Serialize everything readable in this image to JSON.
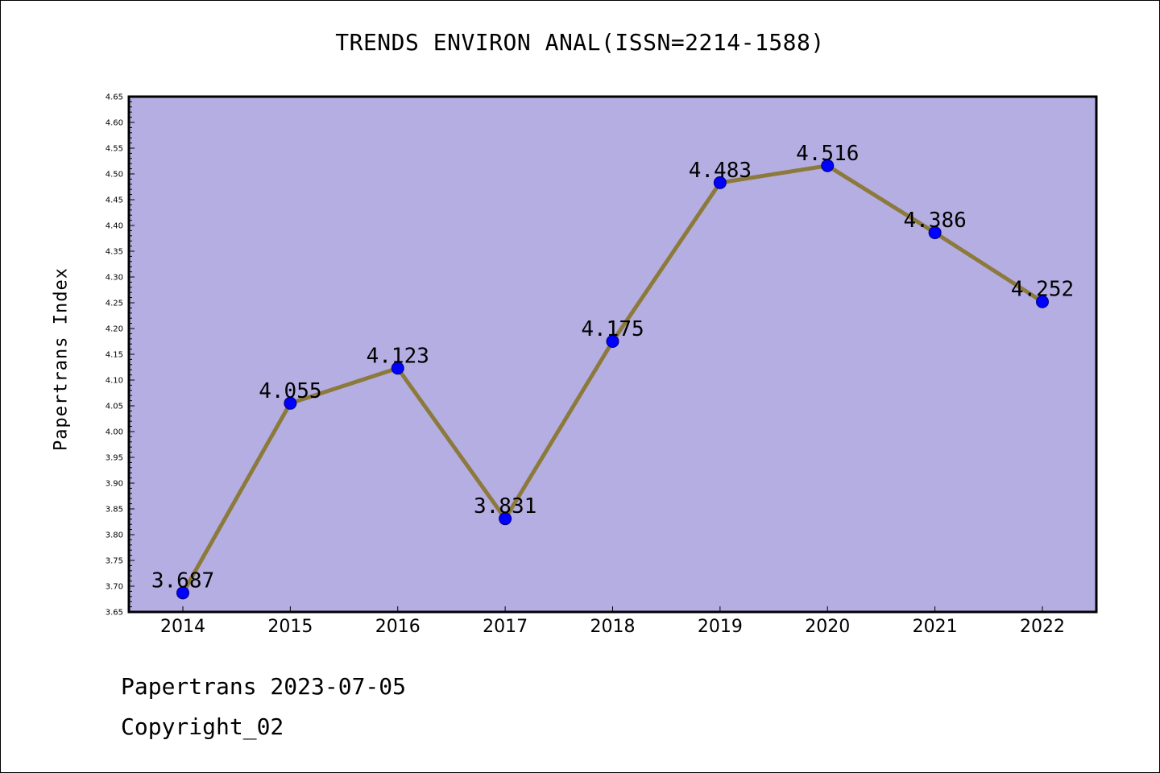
{
  "chart_data": {
    "type": "line",
    "title": "TRENDS ENVIRON ANAL(ISSN=2214-1588)",
    "xlabel": "",
    "ylabel": "Papertrans Index",
    "x": [
      "2014",
      "2015",
      "2016",
      "2017",
      "2018",
      "2019",
      "2020",
      "2021",
      "2022"
    ],
    "series": [
      {
        "values": [
          3.687,
          4.055,
          4.123,
          3.831,
          4.175,
          4.483,
          4.516,
          4.386,
          4.252
        ],
        "data_labels": [
          "3.687",
          "4.055",
          "4.123",
          "3.831",
          "4.175",
          "4.483",
          "4.516",
          "4.386",
          "4.252"
        ]
      }
    ],
    "ylim": [
      3.65,
      4.65
    ],
    "yticks": [
      "3.65",
      "3.70",
      "3.75",
      "3.80",
      "3.85",
      "3.90",
      "3.95",
      "4.00",
      "4.05",
      "4.10",
      "4.15",
      "4.20",
      "4.25",
      "4.30",
      "4.35",
      "4.40",
      "4.45",
      "4.50",
      "4.55",
      "4.60",
      "4.65"
    ],
    "grid": false,
    "legend": "none"
  },
  "colors": {
    "plot_background": "#b4aee2",
    "line": "#8c7a3c",
    "marker_fill": "#0000ff",
    "marker_stroke": "#00007a",
    "axis": "#000000"
  },
  "footer": {
    "date_line": "Papertrans 2023-07-05",
    "copyright_line": "Copyright_02"
  }
}
